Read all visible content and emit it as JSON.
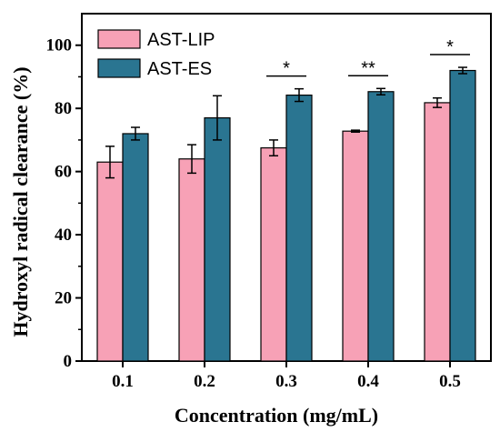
{
  "chart_data": {
    "type": "bar",
    "xlabel": "Concentration (mg/mL)",
    "ylabel": "Hydroxyl radical clearance (%)",
    "categories": [
      "0.1",
      "0.2",
      "0.3",
      "0.4",
      "0.5"
    ],
    "ylim": [
      0,
      110
    ],
    "yticks": [
      "0",
      "20",
      "40",
      "60",
      "80",
      "100"
    ],
    "grid": false,
    "legend_position": "top-left",
    "series": [
      {
        "name": "AST-LIP",
        "color": "#f7a1b6",
        "values": [
          63.0,
          64.0,
          67.5,
          72.8,
          81.8
        ],
        "errors": [
          5.0,
          4.5,
          2.5,
          0.3,
          1.5
        ]
      },
      {
        "name": "AST-ES",
        "color": "#2a7591",
        "values": [
          72.0,
          77.0,
          84.2,
          85.3,
          92.0
        ],
        "errors": [
          2.0,
          7.0,
          2.0,
          1.0,
          1.0
        ]
      }
    ],
    "annotations": [
      {
        "category": "0.3",
        "text": "*"
      },
      {
        "category": "0.4",
        "text": "**"
      },
      {
        "category": "0.5",
        "text": "*"
      }
    ]
  }
}
